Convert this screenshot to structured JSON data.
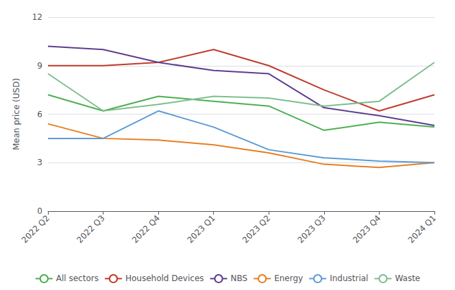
{
  "chart_data": {
    "type": "line",
    "ylabel": "Mean price (USD)",
    "categories": [
      "2022 Q2",
      "2022 Q3",
      "2022 Q4",
      "2023 Q1",
      "2023 Q2",
      "2023 Q3",
      "2023 Q4",
      "2024 Q1"
    ],
    "series": [
      {
        "name": "All sectors",
        "color": "#4caf50",
        "values": [
          7.2,
          6.2,
          7.1,
          6.8,
          6.5,
          5.0,
          5.5,
          5.2
        ]
      },
      {
        "name": "Household Devices",
        "color": "#c0392b",
        "values": [
          9.0,
          9.0,
          9.2,
          10.0,
          9.0,
          7.5,
          6.2,
          7.2
        ]
      },
      {
        "name": "NBS",
        "color": "#5c3d8f",
        "values": [
          10.2,
          10.0,
          9.2,
          8.7,
          8.5,
          6.4,
          5.9,
          5.3
        ]
      },
      {
        "name": "Energy",
        "color": "#e67e22",
        "values": [
          5.4,
          4.5,
          4.4,
          4.1,
          3.6,
          2.9,
          2.7,
          3.0
        ]
      },
      {
        "name": "Industrial",
        "color": "#5b9bd5",
        "values": [
          4.5,
          4.5,
          6.2,
          5.2,
          3.8,
          3.3,
          3.1,
          3.0
        ]
      },
      {
        "name": "Waste",
        "color": "#7dbe8e",
        "values": [
          8.5,
          6.2,
          6.6,
          7.1,
          7.0,
          6.5,
          6.8,
          9.2
        ]
      }
    ],
    "ylim": [
      0,
      12
    ],
    "yticks": [
      0,
      3,
      6,
      9,
      12
    ],
    "grid": true,
    "legend": "bottom"
  }
}
